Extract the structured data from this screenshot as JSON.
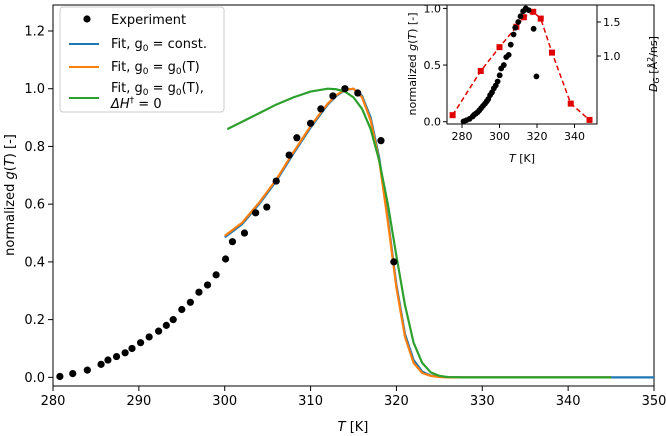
{
  "chart_data": [
    {
      "type": "line",
      "role": "main",
      "xlabel": "T [K]",
      "ylabel": "normalized g(T) [-]",
      "xlim": [
        280,
        350
      ],
      "ylim": [
        -0.03,
        1.29
      ],
      "xticks": [
        280,
        290,
        300,
        310,
        320,
        330,
        340,
        350
      ],
      "xtick_labels": [
        "280",
        "290",
        "300",
        "310",
        "320",
        "330",
        "340",
        "350"
      ],
      "yticks": [
        0.0,
        0.2,
        0.4,
        0.6,
        0.8,
        1.0,
        1.2
      ],
      "ytick_labels": [
        "0.0",
        "0.2",
        "0.4",
        "0.6",
        "0.8",
        "1.0",
        "1.2"
      ],
      "legend_position": "top-left",
      "colors": {
        "experiment": "#000000",
        "fit_const": "#1f77b4",
        "fit_g0T": "#ff7f0e",
        "fit_dH0": "#2ca02c"
      },
      "series": [
        {
          "name": "Experiment",
          "kind": "scatter",
          "x": [
            280.8,
            282.3,
            284.0,
            285.6,
            286.4,
            287.4,
            288.4,
            289.2,
            290.2,
            291.2,
            292.3,
            293.2,
            294.0,
            295.0,
            296.0,
            297.0,
            298.0,
            299.0,
            300.1,
            300.9,
            302.3,
            303.6,
            304.9,
            306.0,
            307.5,
            308.4,
            310.0,
            311.2,
            312.6,
            314.0,
            315.5,
            318.2,
            319.7
          ],
          "y": [
            0.003,
            0.013,
            0.025,
            0.045,
            0.06,
            0.072,
            0.085,
            0.1,
            0.12,
            0.14,
            0.16,
            0.18,
            0.2,
            0.235,
            0.26,
            0.295,
            0.32,
            0.355,
            0.41,
            0.47,
            0.5,
            0.57,
            0.59,
            0.68,
            0.77,
            0.83,
            0.88,
            0.93,
            0.975,
            1.0,
            0.985,
            0.82,
            0.4
          ]
        },
        {
          "name": "Fit, g0 = const.",
          "kind": "line",
          "x": [
            300,
            302,
            304,
            306,
            308,
            310,
            311,
            312,
            313,
            314,
            315,
            316,
            317,
            318,
            319,
            320,
            321,
            322,
            323,
            324,
            325,
            326,
            330,
            340,
            350
          ],
          "y": [
            0.485,
            0.53,
            0.6,
            0.68,
            0.775,
            0.865,
            0.905,
            0.945,
            0.975,
            0.995,
            1.0,
            0.975,
            0.9,
            0.76,
            0.55,
            0.32,
            0.15,
            0.06,
            0.02,
            0.006,
            0.002,
            0.0,
            0.0,
            0.0,
            0.0
          ]
        },
        {
          "name": "Fit, g0 = g0(T)",
          "kind": "line",
          "x": [
            300,
            302,
            304,
            306,
            308,
            310,
            311,
            312,
            313,
            314,
            315,
            316,
            317,
            318,
            319,
            320,
            321,
            322,
            323,
            324,
            325,
            326,
            330,
            340,
            345
          ],
          "y": [
            0.49,
            0.535,
            0.605,
            0.685,
            0.78,
            0.87,
            0.91,
            0.948,
            0.978,
            0.996,
            1.0,
            0.97,
            0.89,
            0.75,
            0.54,
            0.31,
            0.14,
            0.05,
            0.015,
            0.005,
            0.001,
            0.0,
            0.0,
            0.0,
            0.0
          ]
        },
        {
          "name": "Fit, g0 = g0(T), ΔH† = 0",
          "kind": "line",
          "x": [
            300.3,
            302,
            304,
            306,
            308,
            310,
            312,
            313,
            314,
            315,
            316,
            317,
            318,
            319,
            320,
            321,
            322,
            323,
            324,
            325,
            326,
            328,
            330,
            345
          ],
          "y": [
            0.86,
            0.885,
            0.915,
            0.945,
            0.97,
            0.99,
            1.0,
            0.998,
            0.99,
            0.97,
            0.93,
            0.86,
            0.75,
            0.6,
            0.42,
            0.25,
            0.12,
            0.05,
            0.017,
            0.005,
            0.001,
            0.0,
            0.0,
            0.0
          ]
        }
      ]
    },
    {
      "type": "scatter",
      "role": "inset",
      "xlabel": "T [K]",
      "ylabel": "normalized g(T) [-]",
      "ylabel_right": "D_G [Å²/ns]",
      "xlim": [
        272,
        352
      ],
      "ylim": [
        -0.02,
        1.03
      ],
      "ylim_right": [
        0.0,
        1.75
      ],
      "xticks": [
        280,
        300,
        320,
        340
      ],
      "xtick_labels": [
        "280",
        "300",
        "320",
        "340"
      ],
      "yticks": [
        0.0,
        0.5,
        1.0
      ],
      "ytick_labels": [
        "0.0",
        "0.5",
        "1.0"
      ],
      "yticks_right": [
        1.0,
        1.5
      ],
      "ytick_labels_right": [
        "1.0",
        "1.5"
      ],
      "colors": {
        "g_points": "#000000",
        "dg": "#e00000"
      },
      "series": [
        {
          "name": "normalized g(T)",
          "axis": "left",
          "kind": "scatter",
          "x": [
            280.8,
            282.3,
            284.0,
            285.6,
            286.4,
            287.4,
            288.4,
            289.2,
            290.2,
            291.2,
            292.3,
            293.2,
            294.0,
            295.0,
            296.0,
            297.0,
            298.0,
            299.0,
            300.1,
            300.9,
            302.3,
            303.6,
            304.9,
            306.0,
            307.5,
            308.4,
            310.0,
            311.2,
            312.6,
            314.0,
            315.5,
            318.2,
            319.7
          ],
          "y": [
            0.003,
            0.013,
            0.025,
            0.045,
            0.06,
            0.072,
            0.085,
            0.1,
            0.12,
            0.14,
            0.16,
            0.18,
            0.2,
            0.235,
            0.26,
            0.295,
            0.32,
            0.355,
            0.41,
            0.47,
            0.5,
            0.57,
            0.59,
            0.68,
            0.77,
            0.83,
            0.88,
            0.93,
            0.975,
            1.0,
            0.985,
            0.82,
            0.4
          ]
        },
        {
          "name": "D_G",
          "axis": "right",
          "kind": "line-markers",
          "x": [
            275,
            290,
            300,
            309,
            313,
            318,
            322,
            328,
            338,
            348
          ],
          "y": [
            0.13,
            0.78,
            1.13,
            1.43,
            1.57,
            1.65,
            1.55,
            1.05,
            0.3,
            0.06
          ]
        }
      ]
    }
  ],
  "legend": {
    "entries": [
      {
        "label": "Experiment"
      },
      {
        "label_main": "Fit, g",
        "label_sub": "0",
        "label_rest": " = const."
      },
      {
        "label_main": "Fit, g",
        "label_sub": "0",
        "label_rest": " = g",
        "label_sub2": "0",
        "label_end": "(T)"
      },
      {
        "label_main": "Fit, g",
        "label_sub": "0",
        "label_rest": " = g",
        "label_sub2": "0",
        "label_end": "(T),",
        "line2_main": "ΔH",
        "line2_sup": "†",
        "line2_rest": " = 0"
      }
    ]
  }
}
